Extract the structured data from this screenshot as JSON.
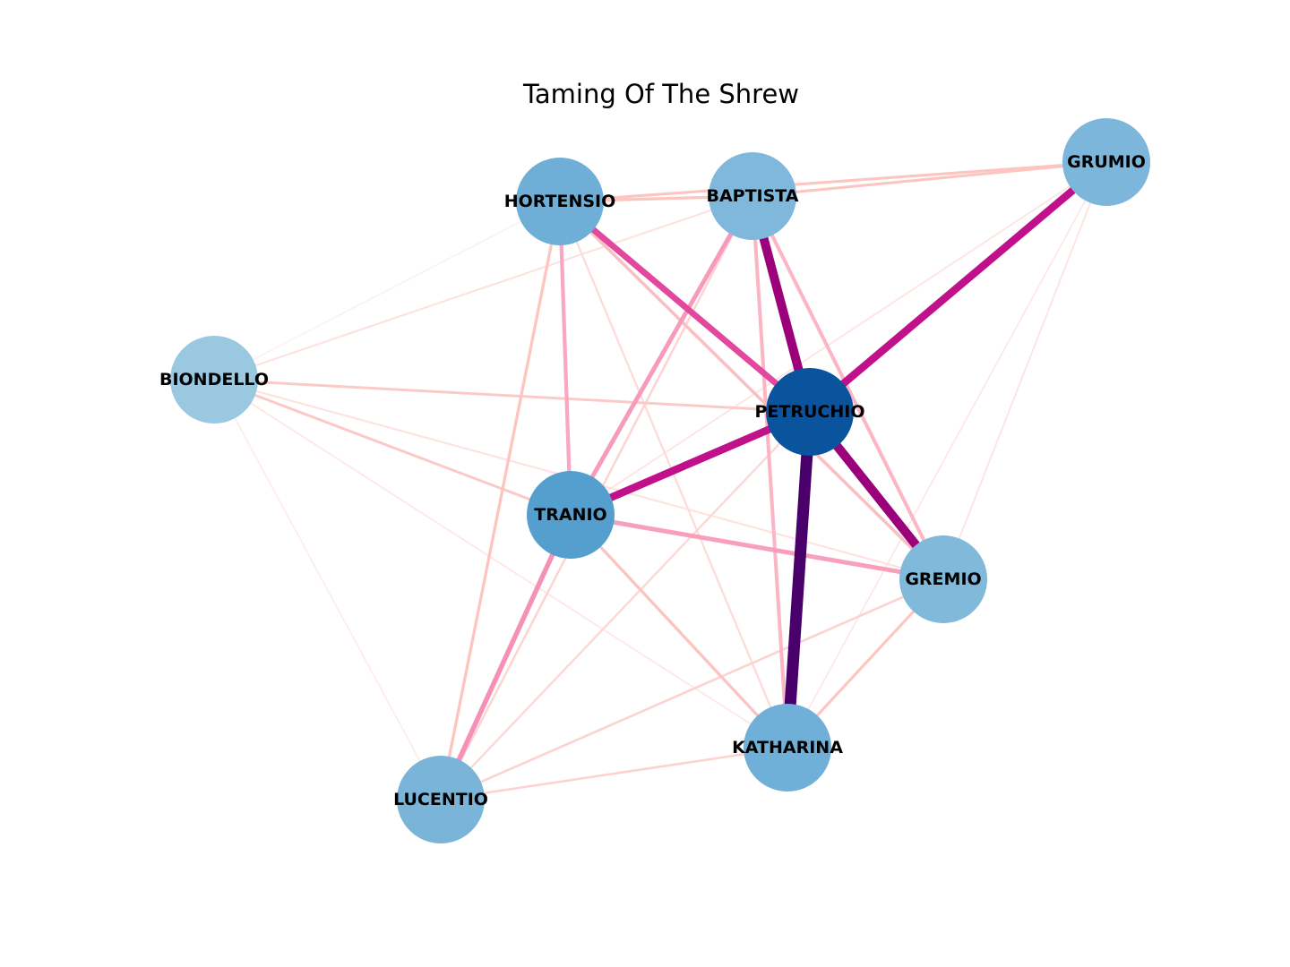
{
  "title": "Taming Of The Shrew",
  "graph": {
    "nodes": [
      {
        "id": "PETRUCHIO",
        "label": "PETRUCHIO",
        "color": "#0a549e"
      },
      {
        "id": "TRANIO",
        "label": "TRANIO",
        "color": "#549fcd"
      },
      {
        "id": "HORTENSIO",
        "label": "HORTENSIO",
        "color": "#6fafd7"
      },
      {
        "id": "KATHARINA",
        "label": "KATHARINA",
        "color": "#70afd7"
      },
      {
        "id": "GRUMIO",
        "label": "GRUMIO",
        "color": "#7cb6da"
      },
      {
        "id": "BAPTISTA",
        "label": "BAPTISTA",
        "color": "#7fb8da"
      },
      {
        "id": "GREMIO",
        "label": "GREMIO",
        "color": "#80b9da"
      },
      {
        "id": "LUCENTIO",
        "label": "LUCENTIO",
        "color": "#7ab5d9"
      },
      {
        "id": "BIONDELLO",
        "label": "BIONDELLO",
        "color": "#9ac8e0"
      }
    ],
    "edges": [
      {
        "source": "PETRUCHIO",
        "target": "KATHARINA",
        "color": "#49006a",
        "weight": 1.0
      },
      {
        "source": "PETRUCHIO",
        "target": "BAPTISTA",
        "color": "#9a017b",
        "weight": 0.75
      },
      {
        "source": "PETRUCHIO",
        "target": "GREMIO",
        "color": "#9a017b",
        "weight": 0.75
      },
      {
        "source": "PETRUCHIO",
        "target": "GRUMIO",
        "color": "#c0118b",
        "weight": 0.62
      },
      {
        "source": "PETRUCHIO",
        "target": "TRANIO",
        "color": "#c0118b",
        "weight": 0.62
      },
      {
        "source": "PETRUCHIO",
        "target": "HORTENSIO",
        "color": "#e2489e",
        "weight": 0.48
      },
      {
        "source": "TRANIO",
        "target": "GREMIO",
        "color": "#f89fbe",
        "weight": 0.32
      },
      {
        "source": "TRANIO",
        "target": "LUCENTIO",
        "color": "#f590b6",
        "weight": 0.36
      },
      {
        "source": "TRANIO",
        "target": "BAPTISTA",
        "color": "#f69bbb",
        "weight": 0.32
      },
      {
        "source": "TRANIO",
        "target": "HORTENSIO",
        "color": "#f9a8c3",
        "weight": 0.26
      },
      {
        "source": "BAPTISTA",
        "target": "GREMIO",
        "color": "#fbb5c5",
        "weight": 0.24
      },
      {
        "source": "BAPTISTA",
        "target": "KATHARINA",
        "color": "#fbb5c5",
        "weight": 0.24
      },
      {
        "source": "HORTENSIO",
        "target": "BAPTISTA",
        "color": "#fcc5c0",
        "weight": 0.18
      },
      {
        "source": "HORTENSIO",
        "target": "GRUMIO",
        "color": "#fcc5c0",
        "weight": 0.16
      },
      {
        "source": "HORTENSIO",
        "target": "GREMIO",
        "color": "#fbbfc3",
        "weight": 0.2
      },
      {
        "source": "HORTENSIO",
        "target": "LUCENTIO",
        "color": "#fcc5c0",
        "weight": 0.18
      },
      {
        "source": "TRANIO",
        "target": "KATHARINA",
        "color": "#fbc4c1",
        "weight": 0.18
      },
      {
        "source": "TRANIO",
        "target": "BIONDELLO",
        "color": "#fbcac6",
        "weight": 0.15
      },
      {
        "source": "BIONDELLO",
        "target": "PETRUCHIO",
        "color": "#fbcac6",
        "weight": 0.15
      },
      {
        "source": "GREMIO",
        "target": "KATHARINA",
        "color": "#fcc5c0",
        "weight": 0.16
      },
      {
        "source": "GREMIO",
        "target": "LUCENTIO",
        "color": "#fcd3d0",
        "weight": 0.12
      },
      {
        "source": "LUCENTIO",
        "target": "KATHARINA",
        "color": "#fcd3d0",
        "weight": 0.12
      },
      {
        "source": "BAPTISTA",
        "target": "LUCENTIO",
        "color": "#fbd5d2",
        "weight": 0.11
      },
      {
        "source": "PETRUCHIO",
        "target": "LUCENTIO",
        "color": "#fcd8d5",
        "weight": 0.1
      },
      {
        "source": "HORTENSIO",
        "target": "KATHARINA",
        "color": "#fcdcd9",
        "weight": 0.09
      },
      {
        "source": "BIONDELLO",
        "target": "BAPTISTA",
        "color": "#fde2df",
        "weight": 0.08
      },
      {
        "source": "BIONDELLO",
        "target": "GREMIO",
        "color": "#fde2df",
        "weight": 0.08
      },
      {
        "source": "BIONDELLO",
        "target": "KATHARINA",
        "color": "#fde8e6",
        "weight": 0.05
      },
      {
        "source": "BIONDELLO",
        "target": "LUCENTIO",
        "color": "#fdecea",
        "weight": 0.04
      },
      {
        "source": "BIONDELLO",
        "target": "HORTENSIO",
        "color": "#fef0ee",
        "weight": 0.03
      },
      {
        "source": "GRUMIO",
        "target": "GREMIO",
        "color": "#fde5e2",
        "weight": 0.06
      },
      {
        "source": "GRUMIO",
        "target": "KATHARINA",
        "color": "#fde8e6",
        "weight": 0.05
      },
      {
        "source": "GRUMIO",
        "target": "TRANIO",
        "color": "#fde5e2",
        "weight": 0.06
      },
      {
        "source": "BAPTISTA",
        "target": "GRUMIO",
        "color": "#fcc5c0",
        "weight": 0.16
      }
    ]
  }
}
